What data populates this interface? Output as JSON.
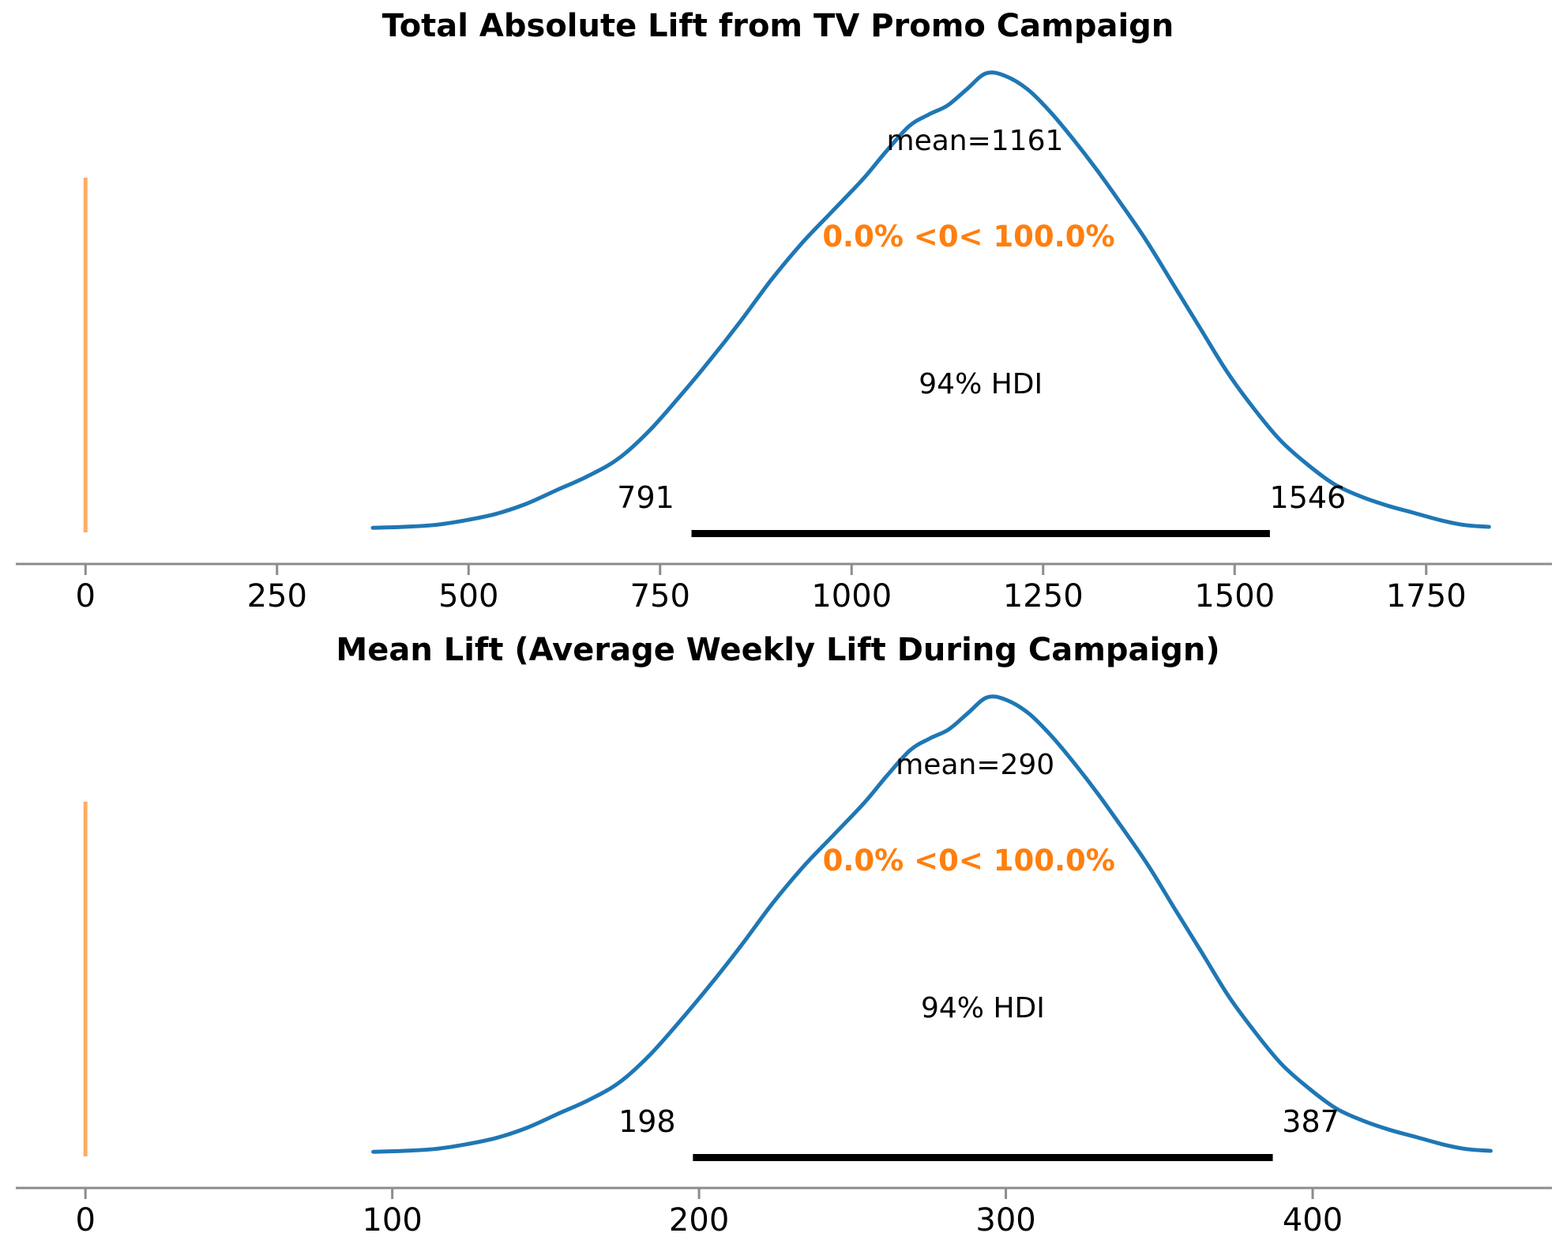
{
  "figure": {
    "background": "#ffffff",
    "colors": {
      "kde_line": "#1f77b4",
      "ref_line": "#ff7f0e",
      "ref_line_alpha": 0.65,
      "ref_text": "#ff7f0e",
      "hdi_bar": "#000000",
      "axis": "#8c8c8c",
      "text": "#000000"
    }
  },
  "chart_data": [
    {
      "type": "area",
      "subtype": "posterior-kde-density",
      "title": "Total Absolute Lift from TV Promo Campaign",
      "xlim": [
        -91,
        1909
      ],
      "x_ticks": [
        0,
        250,
        500,
        750,
        1000,
        1250,
        1500,
        1750
      ],
      "grid": false,
      "legend_position": "none",
      "mean": 1161,
      "mean_label": "mean=1161",
      "ref_val": 0,
      "ref_val_label": "0.0% <0< 100.0%",
      "hdi": {
        "low": 791,
        "high": 1546,
        "label": "94% HDI",
        "low_label": "791",
        "high_label": "1546"
      },
      "kde": {
        "x": [
          375,
          415,
          455,
          495,
          535,
          575,
          615,
          655,
          695,
          735,
          775,
          815,
          855,
          895,
          935,
          975,
          1015,
          1045,
          1075,
          1100,
          1125,
          1150,
          1175,
          1200,
          1230,
          1260,
          1290,
          1320,
          1350,
          1385,
          1420,
          1455,
          1490,
          1525,
          1560,
          1595,
          1630,
          1665,
          1700,
          1735,
          1770,
          1800,
          1832
        ],
        "density": [
          0.01,
          0.012,
          0.016,
          0.026,
          0.04,
          0.062,
          0.092,
          0.122,
          0.16,
          0.22,
          0.295,
          0.375,
          0.46,
          0.55,
          0.63,
          0.7,
          0.77,
          0.83,
          0.885,
          0.91,
          0.93,
          0.965,
          1.0,
          0.995,
          0.965,
          0.915,
          0.855,
          0.79,
          0.72,
          0.635,
          0.54,
          0.445,
          0.35,
          0.27,
          0.2,
          0.148,
          0.105,
          0.078,
          0.058,
          0.042,
          0.026,
          0.016,
          0.012
        ]
      }
    },
    {
      "type": "area",
      "subtype": "posterior-kde-density",
      "title": "Mean Lift (Average Weekly Lift During Campaign)",
      "xlim": [
        -22.7,
        476.7
      ],
      "x_ticks": [
        0,
        100,
        200,
        300,
        400
      ],
      "grid": false,
      "legend_position": "none",
      "mean": 290,
      "mean_label": "mean=290",
      "ref_val": 0,
      "ref_val_label": "0.0% <0< 100.0%",
      "hdi": {
        "low": 198,
        "high": 387,
        "label": "94% HDI",
        "low_label": "198",
        "high_label": "387"
      },
      "kde": {
        "x": [
          93.8,
          103.8,
          113.8,
          123.8,
          133.8,
          143.8,
          153.8,
          163.8,
          173.8,
          183.8,
          193.8,
          203.8,
          213.8,
          223.8,
          233.8,
          243.8,
          253.8,
          261.3,
          268.8,
          275,
          281.3,
          287.5,
          293.8,
          300,
          307.5,
          315,
          322.5,
          330,
          337.5,
          346.3,
          355,
          363.8,
          372.5,
          381.3,
          390,
          398.8,
          407.5,
          416.3,
          425,
          433.8,
          442.5,
          450,
          458
        ],
        "density": [
          0.01,
          0.012,
          0.016,
          0.026,
          0.04,
          0.062,
          0.092,
          0.122,
          0.16,
          0.22,
          0.295,
          0.375,
          0.46,
          0.55,
          0.63,
          0.7,
          0.77,
          0.83,
          0.885,
          0.91,
          0.93,
          0.965,
          1.0,
          0.995,
          0.965,
          0.915,
          0.855,
          0.79,
          0.72,
          0.635,
          0.54,
          0.445,
          0.35,
          0.27,
          0.2,
          0.148,
          0.105,
          0.078,
          0.058,
          0.042,
          0.026,
          0.016,
          0.012
        ]
      }
    }
  ]
}
